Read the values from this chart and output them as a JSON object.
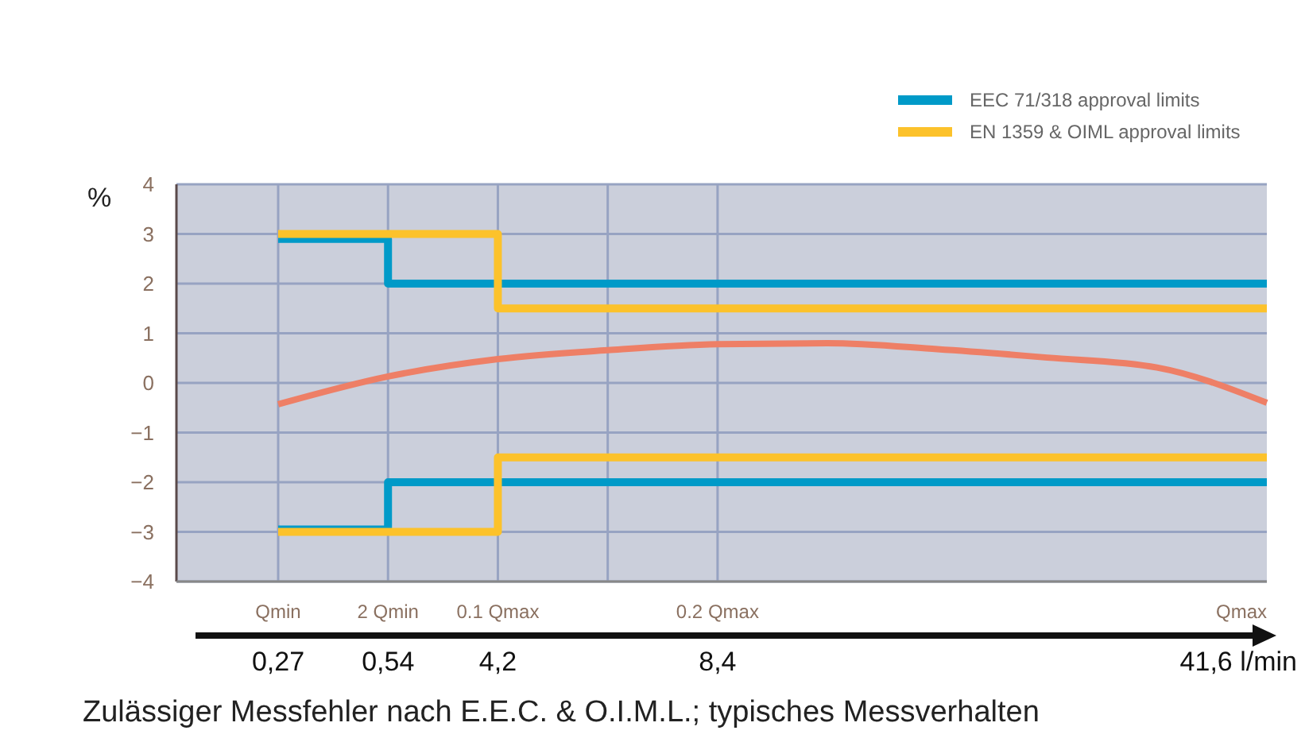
{
  "chart_data": {
    "type": "step",
    "title": "Zulässiger Messfehler nach E.E.C. & O.I.M.L.; typisches Messverhalten",
    "ylabel": "%",
    "categories": [
      "Qmin",
      "2 Qmin",
      "0.1 Qmax",
      null,
      "0.2 Qmax",
      null,
      null,
      null,
      null,
      "Qmax"
    ],
    "annotations": [
      "0,27",
      "0,54",
      "4,2",
      "8,4",
      "41,6 l/min"
    ],
    "ylim": [
      -4,
      4
    ],
    "yticks": [
      {
        "value": -4,
        "label": "−4"
      },
      {
        "value": -3,
        "label": "−3"
      },
      {
        "value": -2,
        "label": "−2"
      },
      {
        "value": -1,
        "label": "−1"
      },
      0,
      1,
      2,
      3,
      4
    ],
    "grid": true,
    "legend": "top right",
    "series": [
      {
        "name": "EEC 71/318 approval limits",
        "color": "#009ac8",
        "values": [
          2.9,
          2,
          2,
          2,
          2,
          2,
          2,
          2,
          2,
          2
        ]
      },
      {
        "color": "#009ac8",
        "values": [
          -2.95,
          -2,
          -2,
          -2,
          -2,
          -2,
          -2,
          -2,
          -2,
          -2
        ]
      },
      {
        "name": "EN 1359 & OIML approval limits",
        "color": "#fcc22b",
        "values": [
          3,
          3,
          1.5,
          1.5,
          1.5,
          1.5,
          1.5,
          1.5,
          1.5,
          1.5
        ]
      },
      {
        "color": "#fcc22b",
        "values": [
          -3,
          -3,
          -1.5,
          -1.5,
          -1.5,
          -1.5,
          -1.5,
          -1.5,
          -1.5,
          -1.5
        ]
      },
      {
        "type": "line",
        "color": "#ee7f66",
        "values": [
          -0.43,
          0.13,
          0.48,
          0.66,
          0.78,
          0.8,
          0.68,
          0.51,
          0.31,
          -0.4
        ]
      }
    ]
  }
}
